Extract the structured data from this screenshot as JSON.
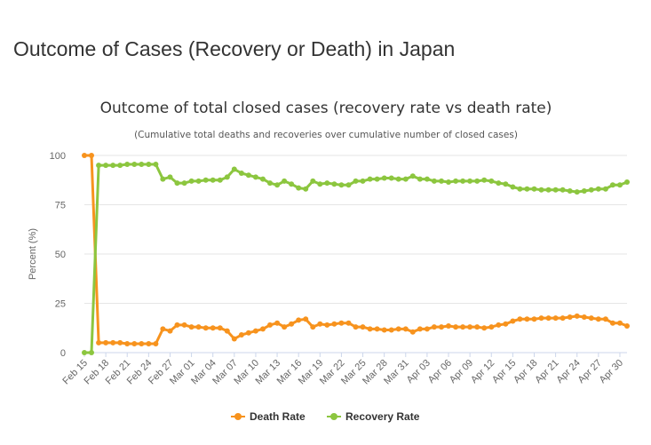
{
  "page": {
    "heading": "Outcome of Cases (Recovery or Death) in Japan"
  },
  "colors": {
    "death": "#f7931e",
    "recovery": "#8cc63f",
    "grid": "#e6e6e6",
    "axis": "#ccd6eb"
  },
  "chart_data": {
    "type": "line",
    "title": "Outcome of total closed cases (recovery rate vs death rate)",
    "subtitle": "(Cumulative total deaths and recoveries over cumulative number of closed cases)",
    "xlabel": "",
    "ylabel": "Percent (%)",
    "ylim": [
      0,
      100
    ],
    "yticks": [
      0,
      25,
      50,
      75,
      100
    ],
    "grid": true,
    "legend_position": "bottom-center",
    "x_tick_labels": [
      "Feb 15",
      "Feb 18",
      "Feb 21",
      "Feb 24",
      "Feb 27",
      "Mar 01",
      "Mar 04",
      "Mar 07",
      "Mar 10",
      "Mar 13",
      "Mar 16",
      "Mar 19",
      "Mar 22",
      "Mar 25",
      "Mar 28",
      "Mar 31",
      "Apr 03",
      "Apr 06",
      "Apr 09",
      "Apr 12",
      "Apr 15",
      "Apr 18",
      "Apr 21",
      "Apr 24",
      "Apr 27",
      "Apr 30"
    ],
    "x": [
      "Feb 15",
      "Feb 16",
      "Feb 17",
      "Feb 18",
      "Feb 19",
      "Feb 20",
      "Feb 21",
      "Feb 22",
      "Feb 23",
      "Feb 24",
      "Feb 25",
      "Feb 26",
      "Feb 27",
      "Feb 28",
      "Feb 29",
      "Mar 01",
      "Mar 02",
      "Mar 03",
      "Mar 04",
      "Mar 05",
      "Mar 06",
      "Mar 07",
      "Mar 08",
      "Mar 09",
      "Mar 10",
      "Mar 11",
      "Mar 12",
      "Mar 13",
      "Mar 14",
      "Mar 15",
      "Mar 16",
      "Mar 17",
      "Mar 18",
      "Mar 19",
      "Mar 20",
      "Mar 21",
      "Mar 22",
      "Mar 23",
      "Mar 24",
      "Mar 25",
      "Mar 26",
      "Mar 27",
      "Mar 28",
      "Mar 29",
      "Mar 30",
      "Mar 31",
      "Apr 01",
      "Apr 02",
      "Apr 03",
      "Apr 04",
      "Apr 05",
      "Apr 06",
      "Apr 07",
      "Apr 08",
      "Apr 09",
      "Apr 10",
      "Apr 11",
      "Apr 12",
      "Apr 13",
      "Apr 14",
      "Apr 15",
      "Apr 16",
      "Apr 17",
      "Apr 18",
      "Apr 19",
      "Apr 20",
      "Apr 21",
      "Apr 22",
      "Apr 23",
      "Apr 24",
      "Apr 25",
      "Apr 26",
      "Apr 27",
      "Apr 28",
      "Apr 29",
      "Apr 30",
      "May 01"
    ],
    "series": [
      {
        "name": "Death Rate",
        "values": [
          100,
          100,
          5,
          5,
          5,
          5,
          4.5,
          4.5,
          4.5,
          4.5,
          4.5,
          12,
          11,
          14,
          14,
          13,
          13,
          12.5,
          12.5,
          12.5,
          11,
          7,
          9,
          10,
          11,
          12,
          14,
          15,
          13,
          14.5,
          16.5,
          17,
          13,
          14.5,
          14,
          14.5,
          15,
          15,
          13,
          13,
          12,
          12,
          11.5,
          11.5,
          12,
          12,
          10.5,
          12,
          12,
          13,
          13,
          13.5,
          13,
          13,
          13,
          13,
          12.5,
          13,
          14,
          14.5,
          16,
          17,
          17,
          17,
          17.5,
          17.5,
          17.5,
          17.5,
          18,
          18.5,
          18,
          17.5,
          17,
          17,
          15,
          15,
          13.5
        ]
      },
      {
        "name": "Recovery Rate",
        "values": [
          0,
          0,
          95,
          95,
          95,
          95,
          95.5,
          95.5,
          95.5,
          95.5,
          95.5,
          88,
          89,
          86,
          86,
          87,
          87,
          87.5,
          87.5,
          87.5,
          89,
          93,
          91,
          90,
          89,
          88,
          86,
          85,
          87,
          85.5,
          83.5,
          83,
          87,
          85.5,
          86,
          85.5,
          85,
          85,
          87,
          87,
          88,
          88,
          88.5,
          88.5,
          88,
          88,
          89.5,
          88,
          88,
          87,
          87,
          86.5,
          87,
          87,
          87,
          87,
          87.5,
          87,
          86,
          85.5,
          84,
          83,
          83,
          83,
          82.5,
          82.5,
          82.5,
          82.5,
          82,
          81.5,
          82,
          82.5,
          83,
          83,
          85,
          85,
          86.5
        ]
      }
    ]
  }
}
